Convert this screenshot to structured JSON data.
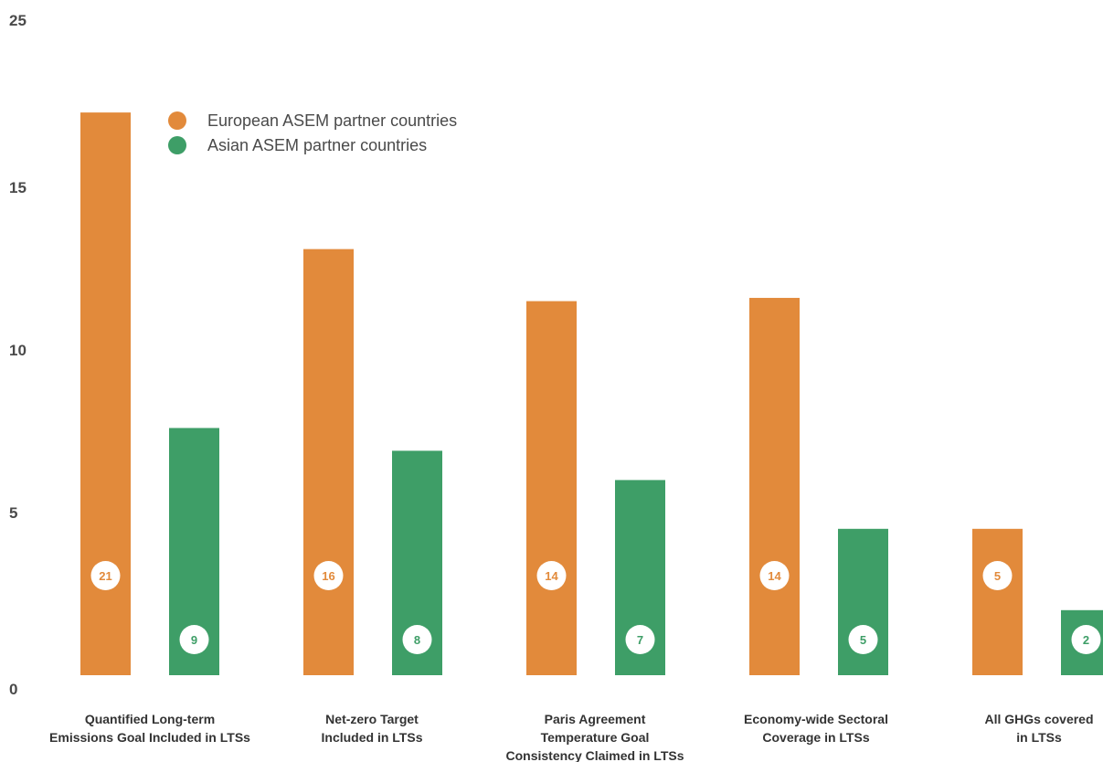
{
  "chart_data": {
    "type": "bar",
    "categories": [
      [
        "Quantified Long-term",
        "Emissions Goal Included in LTSs"
      ],
      [
        "Net-zero Target",
        "Included in LTSs"
      ],
      [
        "Paris Agreement",
        "Temperature Goal",
        "Consistency Claimed in LTSs"
      ],
      [
        "Economy-wide Sectoral",
        "Coverage in LTSs"
      ],
      [
        "All GHGs covered",
        "in LTSs"
      ]
    ],
    "series": [
      {
        "name": "European ASEM partner countries",
        "color": "#E28A3B",
        "values": [
          21,
          16,
          14,
          14,
          5
        ],
        "heights": [
          17.3,
          13.1,
          11.5,
          11.6,
          4.5
        ]
      },
      {
        "name": "Asian ASEM partner countries",
        "color": "#3E9E67",
        "values": [
          9,
          8,
          7,
          5,
          2
        ],
        "heights": [
          7.6,
          6.9,
          6.0,
          4.5,
          2.0
        ]
      }
    ],
    "yticks": [
      0,
      5,
      10,
      15,
      25
    ],
    "ylim": [
      0,
      25
    ],
    "legend_position": "top-left",
    "grid": false
  }
}
